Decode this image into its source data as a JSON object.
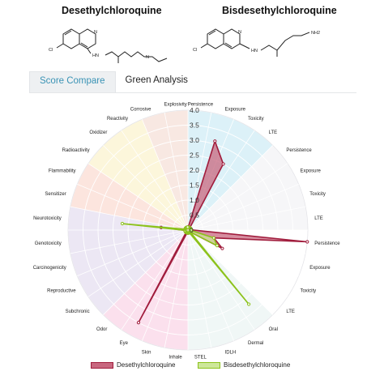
{
  "molecules": [
    {
      "name": "Desethylchloroquine",
      "atoms": {
        "cl": "Cl",
        "nh": "HN",
        "n1": "N",
        "n2": "N"
      }
    },
    {
      "name": "Bisdesethylchloroquine",
      "atoms": {
        "cl": "Cl",
        "nh": "HN",
        "n1": "N",
        "nh2": "NH2"
      }
    }
  ],
  "tabs": [
    {
      "label": "Score Compare",
      "active": true
    },
    {
      "label": "Green Analysis",
      "active": false
    }
  ],
  "chart_data": {
    "type": "radar",
    "axis_ticks": [
      "0",
      "0.5",
      "1.0",
      "1.5",
      "2.0",
      "2.5",
      "3.0",
      "3.5",
      "4.0"
    ],
    "rmax": 4,
    "axes": [
      "Persistence",
      "Exposure",
      "Toxicity",
      "LTE",
      "Persistence",
      "Exposure",
      "Toxicity",
      "LTE",
      "Persistence",
      "Exposure",
      "Toxicity",
      "LTE",
      "Oral",
      "Dermal",
      "IDLH",
      "STEL",
      "Inhale",
      "Skin",
      "Eye",
      "Odor",
      "Subchronic",
      "Reproductive",
      "Carcinogenicity",
      "Genotoxicity",
      "Neurotoxicity",
      "Sensitizer",
      "Flammability",
      "Radioactivity",
      "Oxidizer",
      "Reactivity",
      "Corrosive",
      "Explosivity"
    ],
    "sectors": [
      {
        "from": 0,
        "to": 4,
        "color": "#d6eef7"
      },
      {
        "from": 4,
        "to": 8,
        "color": "#f4f5f7"
      },
      {
        "from": 8,
        "to": 12,
        "color": "#ffffff"
      },
      {
        "from": 12,
        "to": 16,
        "color": "#edf6f4"
      },
      {
        "from": 16,
        "to": 20,
        "color": "#fadbea"
      },
      {
        "from": 20,
        "to": 25,
        "color": "#e9e3f2"
      },
      {
        "from": 25,
        "to": 27,
        "color": "#fbe1d8"
      },
      {
        "from": 27,
        "to": 30,
        "color": "#fbf4d5"
      },
      {
        "from": 30,
        "to": 32,
        "color": "#f7e4dd"
      }
    ],
    "series": [
      {
        "name": "Desethylchloroquine",
        "stroke": "#a01c3c",
        "fill": "#c8677f",
        "values": [
          0.1,
          3.1,
          2.5,
          0.1,
          0.1,
          0.1,
          0.1,
          0.1,
          4.0,
          0.9,
          1.3,
          0.1,
          0.1,
          0.1,
          0.1,
          0.1,
          0.1,
          0.1,
          3.5,
          0.1,
          0.1,
          0.1,
          0.1,
          0.1,
          0.9,
          0.1,
          0.1,
          0.1,
          0.1,
          0.1,
          0.1,
          0.1
        ]
      },
      {
        "name": "Bisdesethylchloroquine",
        "stroke": "#8cc21b",
        "fill": "#cde79a",
        "values": [
          0.1,
          0.1,
          0.1,
          0.1,
          0.1,
          0.1,
          0.1,
          0.1,
          0.1,
          0.9,
          1.1,
          0.1,
          3.2,
          0.1,
          0.1,
          0.1,
          0.1,
          0.1,
          0.1,
          0.1,
          0.1,
          0.1,
          0.1,
          0.1,
          2.2,
          0.1,
          0.1,
          0.1,
          0.1,
          0.1,
          0.1,
          0.1
        ]
      }
    ],
    "legend_position": "bottom"
  }
}
